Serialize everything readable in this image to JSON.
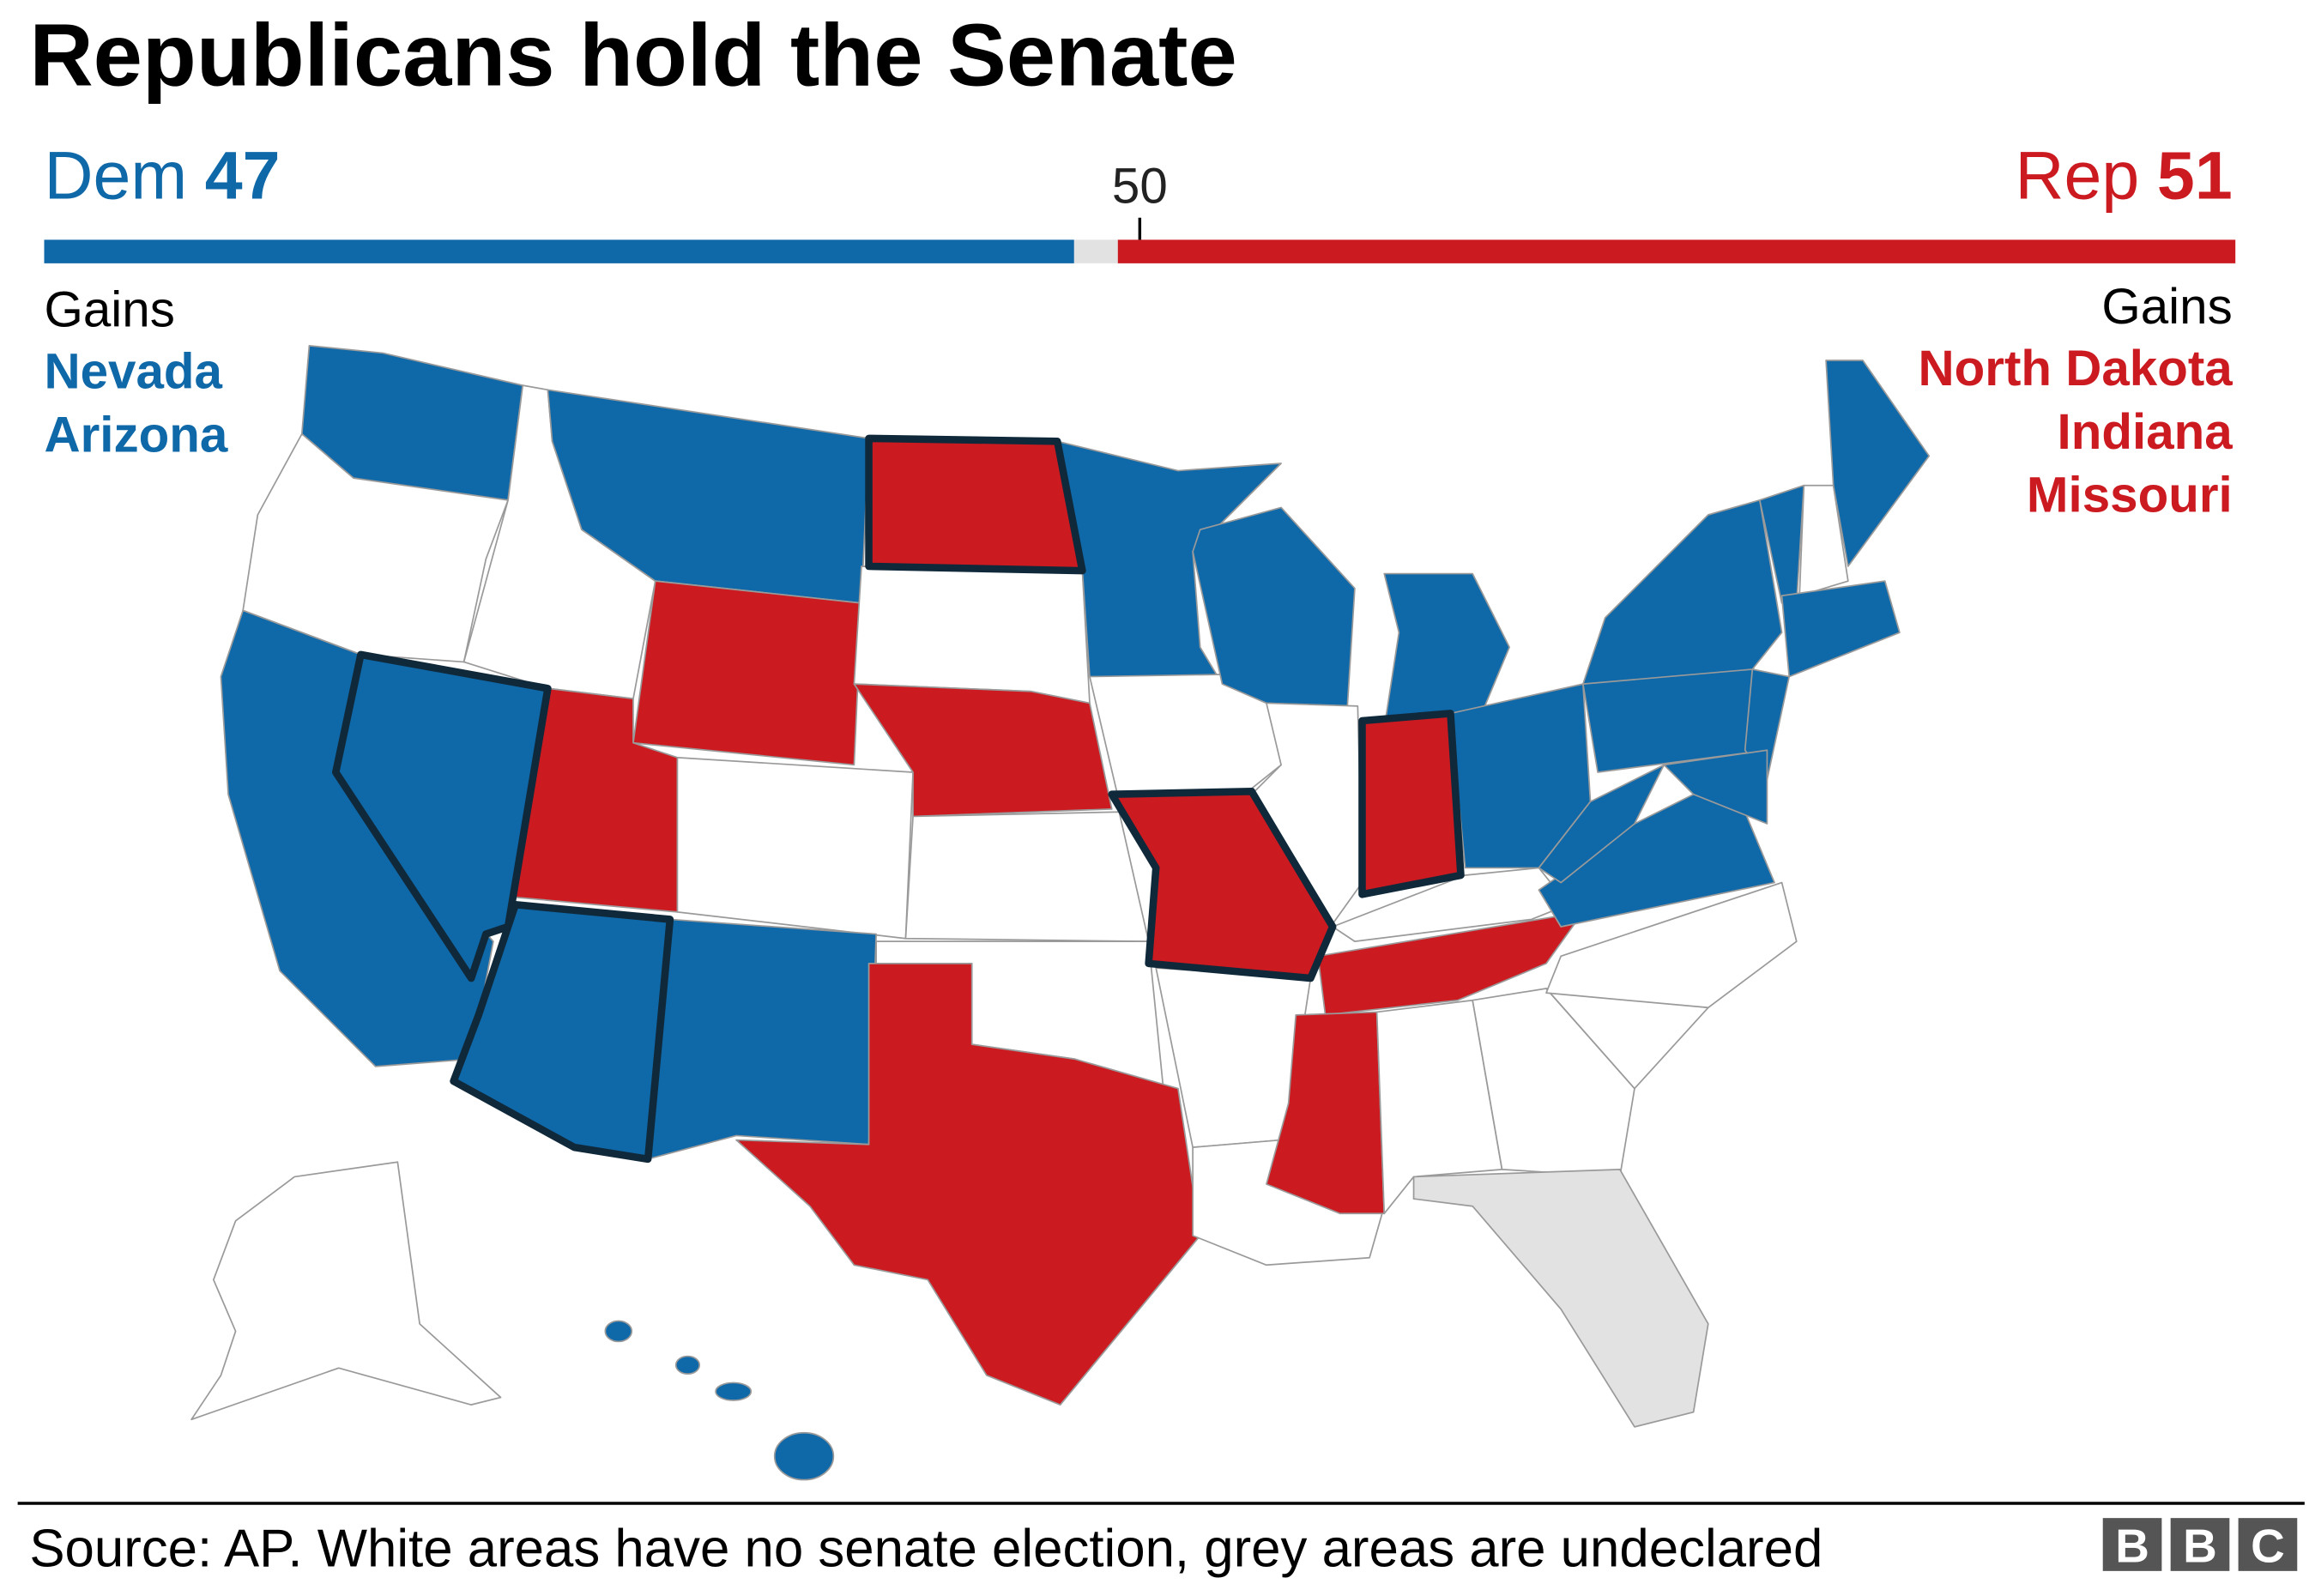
{
  "header": {
    "title": "Republicans hold the Senate"
  },
  "tally": {
    "xlim": [
      0,
      100
    ],
    "majority": 50,
    "dem": {
      "label": "Dem",
      "seats": 47,
      "color": "#0f68a8",
      "gains_label": "Gains",
      "gains": [
        "Nevada",
        "Arizona"
      ]
    },
    "rep": {
      "label": "Rep",
      "seats": 51,
      "color": "#cc1a21",
      "gains_label": "Gains",
      "gains": [
        "North Dakota",
        "Indiana",
        "Missouri"
      ]
    }
  },
  "footer": {
    "source": "Source: AP. White areas have no senate election, grey areas are undeclared",
    "logo": [
      "B",
      "B",
      "C"
    ]
  }
}
